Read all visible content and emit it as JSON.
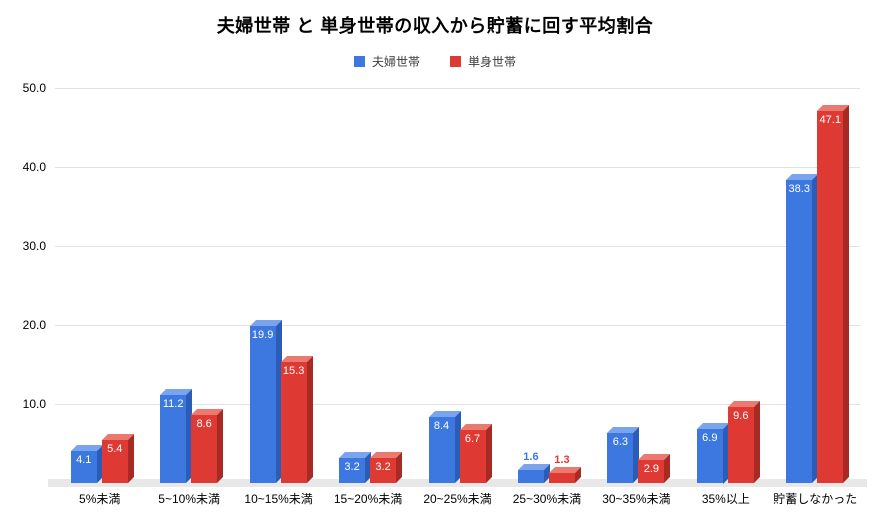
{
  "chart_data": {
    "type": "bar",
    "style": "3d-grouped-column",
    "title": "夫婦世帯 と 単身世帯の収入から貯蓄に回す平均割合",
    "categories": [
      "5%未満",
      "5~10%未満",
      "10~15%未満",
      "15~20%未満",
      "20~25%未満",
      "25~30%未満",
      "30~35%未満",
      "35%以上",
      "貯蓄しなかった"
    ],
    "series": [
      {
        "name": "夫婦世帯",
        "color": "#3c78e0",
        "color_top": "#7ba4ee",
        "color_side": "#2a5cb8",
        "values": [
          4.1,
          11.2,
          19.9,
          3.2,
          8.4,
          1.6,
          6.3,
          6.9,
          38.3
        ]
      },
      {
        "name": "単身世帯",
        "color": "#de3a33",
        "color_top": "#ea7a70",
        "color_side": "#a82a25",
        "values": [
          5.4,
          8.6,
          15.3,
          3.2,
          6.7,
          1.3,
          2.9,
          9.6,
          47.1
        ]
      }
    ],
    "ylim": [
      0,
      50
    ],
    "yticks": [
      10,
      20,
      30,
      40,
      50
    ],
    "ytick_labels": [
      "10.0",
      "20.0",
      "30.0",
      "40.0",
      "50.0"
    ],
    "grid": true,
    "legend_position": "top",
    "value_labels": true,
    "background": "#ffffff"
  }
}
